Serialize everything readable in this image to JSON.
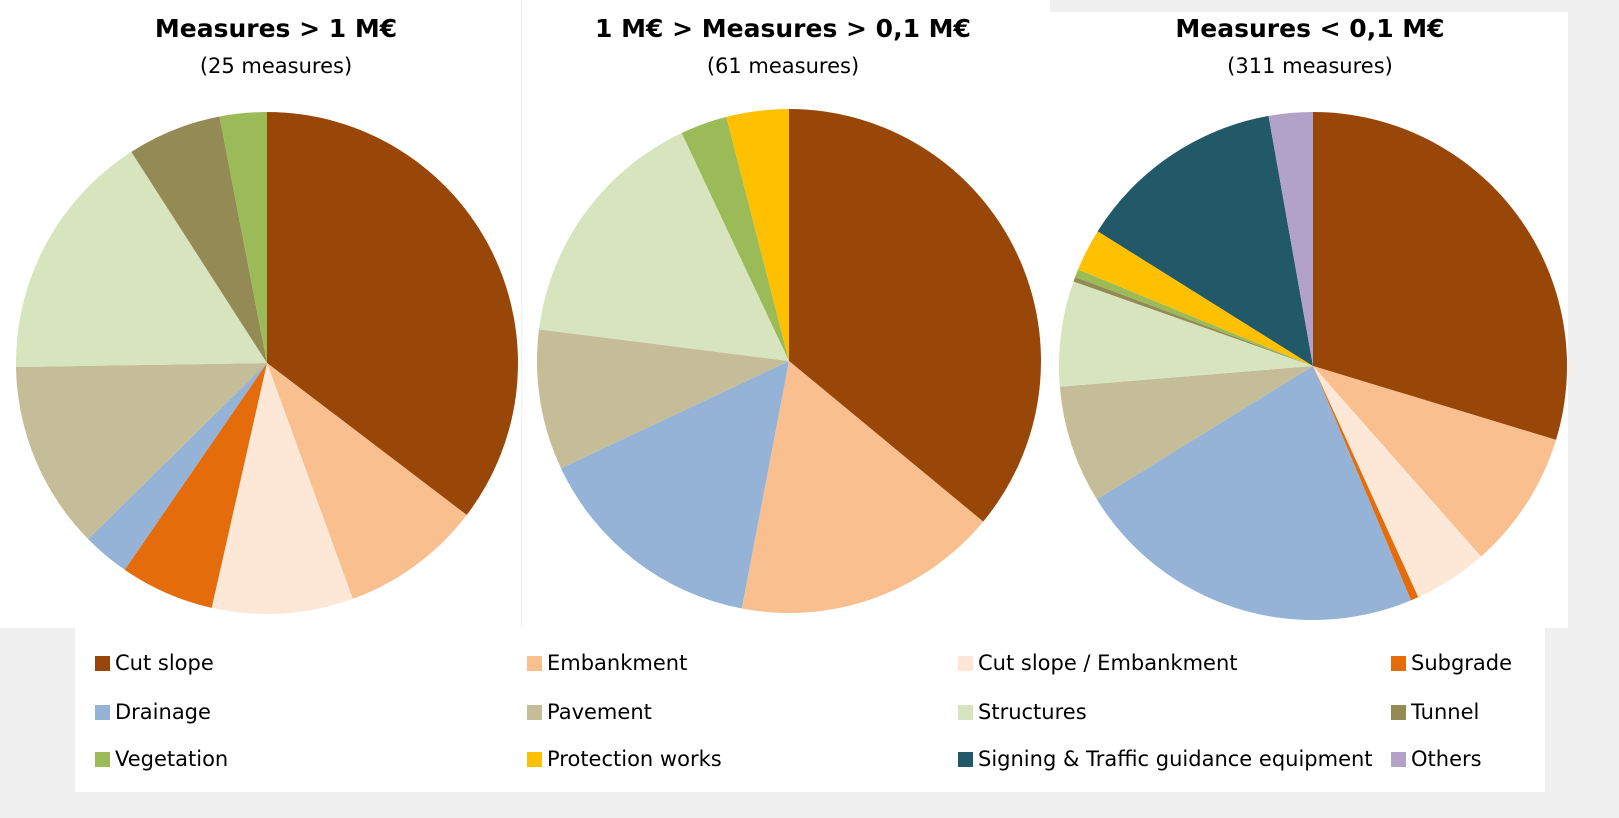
{
  "legend": {
    "categories": [
      "Cut slope",
      "Embankment",
      "Cut slope / Embankment",
      "Subgrade",
      "Drainage",
      "Pavement",
      "Structures",
      "Tunnel",
      "Vegetation",
      "Protection works",
      "Signing & Traffic guidance equipment",
      "Others"
    ],
    "colors": [
      "#994709",
      "#f9bf8f",
      "#fde8d8",
      "#e46c0a",
      "#95b3d7",
      "#c4bd97",
      "#d7e4bd",
      "#948a54",
      "#9bbb59",
      "#ffc000",
      "#215968",
      "#b3a2c7"
    ]
  },
  "chart_data": [
    {
      "type": "pie",
      "title": "Measures > 1 M€",
      "subtitle": "(25 measures)",
      "values": [
        35,
        9,
        9,
        6,
        3,
        12,
        16,
        6,
        3,
        0,
        0,
        0
      ]
    },
    {
      "type": "pie",
      "title": "1 M€ > Measures > 0,1 M€",
      "subtitle": "(61 measures)",
      "values": [
        36,
        17,
        0,
        0,
        15,
        9,
        16,
        0,
        3,
        4,
        0,
        0
      ]
    },
    {
      "type": "pie",
      "title": "Measures < 0,1 M€",
      "subtitle": "(311 measures)",
      "values": [
        29.7,
        8.8,
        4.7,
        0.5,
        22.5,
        7.5,
        6.7,
        0.3,
        0.5,
        2.7,
        13.3,
        2.8
      ]
    }
  ]
}
